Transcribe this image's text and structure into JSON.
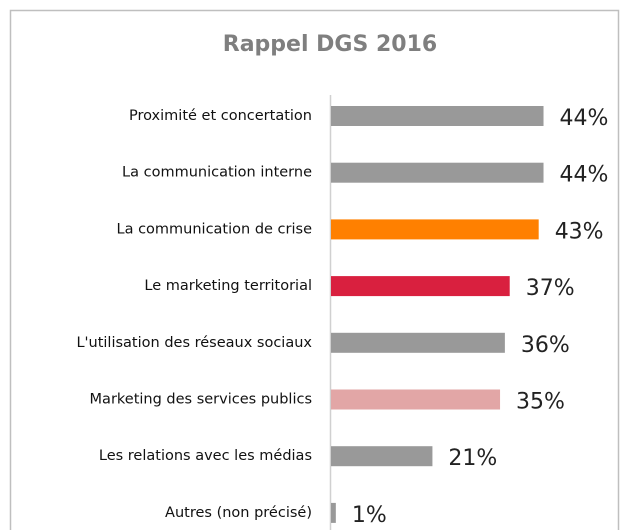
{
  "chart_data": {
    "type": "barh",
    "title": "Rappel DGS 2016",
    "categories": [
      "Proximité et concertation",
      "La communication interne",
      "La communication de crise",
      "Le marketing territorial",
      "L'utilisation des réseaux sociaux",
      "Marketing des services publics",
      "Les relations avec les médias",
      "Autres (non précisé)"
    ],
    "values": [
      44,
      44,
      43,
      37,
      36,
      35,
      21,
      1
    ],
    "value_labels": [
      "44%",
      "44%",
      "43%",
      "37%",
      "36%",
      "35%",
      "21%",
      "1%"
    ],
    "colors": [
      "#999999",
      "#999999",
      "#ff8000",
      "#d9203f",
      "#999999",
      "#e2a6a6",
      "#999999",
      "#999999"
    ]
  }
}
